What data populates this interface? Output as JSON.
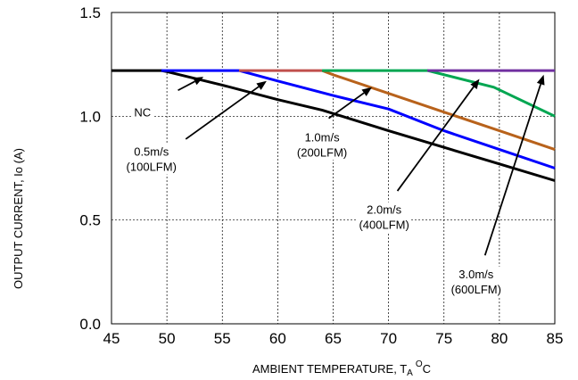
{
  "chart_data": {
    "type": "line",
    "title": "",
    "xlabel": "AMBIENT TEMPERATURE, T",
    "xlabel_subscript": "A",
    "xlabel_superscript": "O",
    "xlabel_unit": "C",
    "ylabel": "OUTPUT CURRENT, Io  (A)",
    "xlim": [
      45,
      85
    ],
    "ylim": [
      0,
      1.5
    ],
    "x_ticks": [
      "45",
      "50",
      "55",
      "60",
      "65",
      "70",
      "75",
      "80",
      "85"
    ],
    "y_ticks": [
      "0.0",
      "0.5",
      "1.0",
      "1.5"
    ],
    "grid": true,
    "series": [
      {
        "name": "NC",
        "color": "#000000",
        "x": [
          45,
          49.5,
          50,
          55,
          60,
          64,
          70,
          75,
          80,
          85
        ],
        "y": [
          1.22,
          1.22,
          1.215,
          1.15,
          1.08,
          1.03,
          0.93,
          0.85,
          0.77,
          0.69
        ]
      },
      {
        "name": "0.5m/s (100LFM)",
        "color": "#0000ff",
        "x": [
          49.5,
          56.5,
          60,
          65,
          70,
          75,
          80,
          85
        ],
        "y": [
          1.22,
          1.22,
          1.17,
          1.1,
          1.035,
          0.93,
          0.84,
          0.75
        ]
      },
      {
        "name": "1.0m/s (200LFM)",
        "color": "#c0504d",
        "x": [
          56.5,
          64
        ],
        "y": [
          1.22,
          1.22
        ]
      },
      {
        "name": "1.0m/s (200LFM)",
        "color": "#b8621b",
        "x": [
          64,
          65,
          70,
          75,
          80,
          85
        ],
        "y": [
          1.22,
          1.2,
          1.11,
          1.02,
          0.93,
          0.84
        ]
      },
      {
        "name": "2.0m/s (400LFM)",
        "color": "#00a651",
        "x": [
          64,
          73.5,
          79.5,
          85
        ],
        "y": [
          1.22,
          1.22,
          1.14,
          1.0
        ]
      },
      {
        "name": "3.0m/s (600LFM)",
        "color": "#7030a0",
        "x": [
          73.5,
          85
        ],
        "y": [
          1.22,
          1.22
        ]
      }
    ],
    "annotations": [
      {
        "lines": [
          "NC"
        ],
        "text_at": [
          47.8,
          1.0
        ],
        "arrow_from": [
          51.0,
          1.125
        ],
        "arrow_to": [
          53.3,
          1.19
        ]
      },
      {
        "lines": [
          "0.5m/s",
          "(100LFM)"
        ],
        "text_at": [
          48.6,
          0.81
        ],
        "arrow_from": [
          51.7,
          0.89
        ],
        "arrow_to": [
          59.0,
          1.17
        ]
      },
      {
        "lines": [
          "1.0m/s",
          "(200LFM)"
        ],
        "text_at": [
          64.0,
          0.88
        ],
        "arrow_from": [
          64.6,
          0.99
        ],
        "arrow_to": [
          68.5,
          1.14
        ]
      },
      {
        "lines": [
          "2.0m/s",
          "(400LFM)"
        ],
        "text_at": [
          69.6,
          0.53
        ],
        "arrow_from": [
          70.8,
          0.64
        ],
        "arrow_to": [
          78.2,
          1.18
        ]
      },
      {
        "lines": [
          "3.0m/s",
          "(600LFM)"
        ],
        "text_at": [
          77.9,
          0.22
        ],
        "arrow_from": [
          78.7,
          0.33
        ],
        "arrow_to": [
          84.0,
          1.2
        ]
      }
    ]
  }
}
